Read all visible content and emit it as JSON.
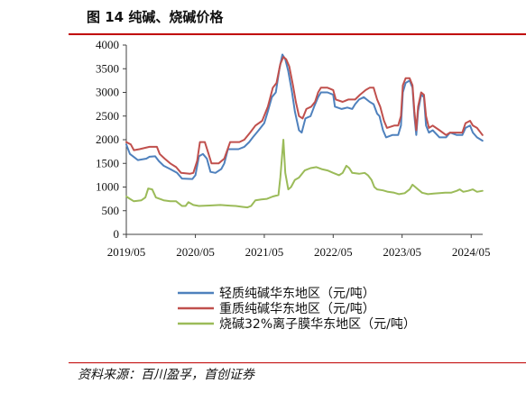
{
  "header": {
    "title": "图 14 纯碱、烧碱价格"
  },
  "footer": {
    "source": "资料来源：百川盈孚，首创证券"
  },
  "chart_data": {
    "type": "line",
    "ylim": [
      0,
      4000
    ],
    "y_ticks": [
      0,
      500,
      1000,
      1500,
      2000,
      2500,
      3000,
      3500,
      4000
    ],
    "x_range": [
      "2019/05",
      "2024/07"
    ],
    "x_ticks": [
      "2019/05",
      "2020/05",
      "2021/05",
      "2022/05",
      "2023/05",
      "2024/05"
    ],
    "legend_position": "bottom",
    "grid": false,
    "series": [
      {
        "name": "轻质纯碱华东地区（元/吨）",
        "color": "#4f81bd",
        "points": [
          [
            "2019-05-01",
            1900
          ],
          [
            "2019-05-20",
            1700
          ],
          [
            "2019-06-15",
            1620
          ],
          [
            "2019-07-01",
            1570
          ],
          [
            "2019-08-15",
            1600
          ],
          [
            "2019-09-01",
            1640
          ],
          [
            "2019-10-01",
            1650
          ],
          [
            "2019-10-20",
            1550
          ],
          [
            "2019-11-15",
            1450
          ],
          [
            "2019-12-20",
            1380
          ],
          [
            "2020-01-25",
            1300
          ],
          [
            "2020-02-20",
            1180
          ],
          [
            "2020-04-15",
            1170
          ],
          [
            "2020-05-01",
            1250
          ],
          [
            "2020-05-20",
            1650
          ],
          [
            "2020-06-10",
            1700
          ],
          [
            "2020-07-01",
            1600
          ],
          [
            "2020-07-20",
            1320
          ],
          [
            "2020-08-15",
            1300
          ],
          [
            "2020-09-15",
            1380
          ],
          [
            "2020-10-01",
            1500
          ],
          [
            "2020-10-20",
            1800
          ],
          [
            "2020-12-15",
            1800
          ],
          [
            "2021-01-15",
            1850
          ],
          [
            "2021-02-10",
            1950
          ],
          [
            "2021-03-01",
            2050
          ],
          [
            "2021-04-01",
            2200
          ],
          [
            "2021-05-01",
            2350
          ],
          [
            "2021-05-20",
            2600
          ],
          [
            "2021-06-10",
            2900
          ],
          [
            "2021-07-01",
            3000
          ],
          [
            "2021-07-20",
            3500
          ],
          [
            "2021-08-05",
            3800
          ],
          [
            "2021-08-20",
            3700
          ],
          [
            "2021-09-05",
            3450
          ],
          [
            "2021-09-25",
            3000
          ],
          [
            "2021-10-10",
            2600
          ],
          [
            "2021-11-01",
            2200
          ],
          [
            "2021-11-15",
            2150
          ],
          [
            "2021-12-05",
            2450
          ],
          [
            "2022-01-01",
            2500
          ],
          [
            "2022-01-20",
            2700
          ],
          [
            "2022-02-10",
            2900
          ],
          [
            "2022-02-25",
            3000
          ],
          [
            "2022-04-01",
            3000
          ],
          [
            "2022-05-01",
            2950
          ],
          [
            "2022-05-10",
            2700
          ],
          [
            "2022-06-15",
            2650
          ],
          [
            "2022-07-15",
            2680
          ],
          [
            "2022-08-10",
            2650
          ],
          [
            "2022-08-25",
            2750
          ],
          [
            "2022-09-15",
            2850
          ],
          [
            "2022-10-10",
            2900
          ],
          [
            "2022-11-10",
            2800
          ],
          [
            "2022-12-01",
            2750
          ],
          [
            "2022-12-20",
            2550
          ],
          [
            "2023-01-01",
            2500
          ],
          [
            "2023-01-20",
            2200
          ],
          [
            "2023-02-05",
            2050
          ],
          [
            "2023-03-10",
            2100
          ],
          [
            "2023-04-10",
            2100
          ],
          [
            "2023-04-25",
            2300
          ],
          [
            "2023-05-05",
            3000
          ],
          [
            "2023-05-20",
            3200
          ],
          [
            "2023-06-10",
            3250
          ],
          [
            "2023-06-25",
            3100
          ],
          [
            "2023-07-05",
            2500
          ],
          [
            "2023-07-15",
            2100
          ],
          [
            "2023-07-25",
            2600
          ],
          [
            "2023-08-10",
            2950
          ],
          [
            "2023-08-25",
            2900
          ],
          [
            "2023-09-05",
            2300
          ],
          [
            "2023-09-20",
            2150
          ],
          [
            "2023-10-10",
            2200
          ],
          [
            "2023-11-15",
            2050
          ],
          [
            "2023-12-20",
            2050
          ],
          [
            "2024-01-10",
            2150
          ],
          [
            "2024-02-15",
            2100
          ],
          [
            "2024-03-15",
            2100
          ],
          [
            "2024-04-01",
            2250
          ],
          [
            "2024-04-25",
            2300
          ],
          [
            "2024-05-10",
            2150
          ],
          [
            "2024-06-01",
            2050
          ],
          [
            "2024-06-30",
            1980
          ]
        ]
      },
      {
        "name": "重质纯碱华东地区（元/吨）",
        "color": "#c0504d",
        "points": [
          [
            "2019-05-01",
            1950
          ],
          [
            "2019-05-25",
            1900
          ],
          [
            "2019-06-10",
            1780
          ],
          [
            "2019-07-10",
            1800
          ],
          [
            "2019-09-01",
            1850
          ],
          [
            "2019-10-10",
            1850
          ],
          [
            "2019-10-25",
            1700
          ],
          [
            "2019-11-20",
            1600
          ],
          [
            "2019-12-20",
            1500
          ],
          [
            "2020-01-20",
            1420
          ],
          [
            "2020-02-15",
            1300
          ],
          [
            "2020-04-01",
            1280
          ],
          [
            "2020-04-20",
            1300
          ],
          [
            "2020-05-10",
            1550
          ],
          [
            "2020-05-25",
            1950
          ],
          [
            "2020-06-20",
            1950
          ],
          [
            "2020-07-10",
            1700
          ],
          [
            "2020-07-25",
            1500
          ],
          [
            "2020-09-01",
            1500
          ],
          [
            "2020-10-01",
            1600
          ],
          [
            "2020-11-01",
            1950
          ],
          [
            "2020-12-20",
            1950
          ],
          [
            "2021-01-15",
            2000
          ],
          [
            "2021-02-15",
            2150
          ],
          [
            "2021-03-15",
            2300
          ],
          [
            "2021-04-20",
            2400
          ],
          [
            "2021-05-20",
            2700
          ],
          [
            "2021-06-15",
            3100
          ],
          [
            "2021-07-05",
            3200
          ],
          [
            "2021-07-25",
            3600
          ],
          [
            "2021-08-10",
            3750
          ],
          [
            "2021-08-25",
            3700
          ],
          [
            "2021-09-10",
            3550
          ],
          [
            "2021-09-30",
            3150
          ],
          [
            "2021-10-15",
            2800
          ],
          [
            "2021-11-01",
            2500
          ],
          [
            "2021-11-20",
            2450
          ],
          [
            "2021-12-10",
            2650
          ],
          [
            "2022-01-05",
            2700
          ],
          [
            "2022-01-25",
            2800
          ],
          [
            "2022-02-10",
            3000
          ],
          [
            "2022-02-25",
            3100
          ],
          [
            "2022-04-01",
            3100
          ],
          [
            "2022-05-01",
            3050
          ],
          [
            "2022-05-15",
            2850
          ],
          [
            "2022-06-20",
            2800
          ],
          [
            "2022-07-20",
            2850
          ],
          [
            "2022-08-25",
            2850
          ],
          [
            "2022-09-20",
            2950
          ],
          [
            "2022-10-20",
            3050
          ],
          [
            "2022-11-10",
            3100
          ],
          [
            "2022-12-01",
            3100
          ],
          [
            "2022-12-20",
            2850
          ],
          [
            "2023-01-05",
            2700
          ],
          [
            "2023-01-25",
            2400
          ],
          [
            "2023-02-10",
            2250
          ],
          [
            "2023-03-20",
            2300
          ],
          [
            "2023-04-10",
            2300
          ],
          [
            "2023-04-25",
            2500
          ],
          [
            "2023-05-05",
            3150
          ],
          [
            "2023-05-20",
            3300
          ],
          [
            "2023-06-10",
            3300
          ],
          [
            "2023-06-25",
            3150
          ],
          [
            "2023-07-05",
            2600
          ],
          [
            "2023-07-15",
            2200
          ],
          [
            "2023-07-25",
            2700
          ],
          [
            "2023-08-10",
            3000
          ],
          [
            "2023-08-25",
            2950
          ],
          [
            "2023-09-05",
            2500
          ],
          [
            "2023-09-20",
            2250
          ],
          [
            "2023-10-10",
            2300
          ],
          [
            "2023-11-15",
            2200
          ],
          [
            "2023-12-20",
            2100
          ],
          [
            "2024-01-10",
            2150
          ],
          [
            "2024-02-15",
            2150
          ],
          [
            "2024-03-15",
            2150
          ],
          [
            "2024-04-01",
            2350
          ],
          [
            "2024-04-25",
            2400
          ],
          [
            "2024-05-10",
            2300
          ],
          [
            "2024-06-01",
            2250
          ],
          [
            "2024-06-30",
            2100
          ]
        ]
      },
      {
        "name": "烧碱32%离子膜华东地区（元/吨）",
        "color": "#9bbb59",
        "points": [
          [
            "2019-05-01",
            800
          ],
          [
            "2019-05-20",
            750
          ],
          [
            "2019-06-10",
            700
          ],
          [
            "2019-07-20",
            720
          ],
          [
            "2019-08-10",
            780
          ],
          [
            "2019-08-25",
            970
          ],
          [
            "2019-09-15",
            950
          ],
          [
            "2019-10-05",
            780
          ],
          [
            "2019-11-15",
            720
          ],
          [
            "2019-12-20",
            700
          ],
          [
            "2020-01-20",
            700
          ],
          [
            "2020-02-20",
            600
          ],
          [
            "2020-03-10",
            600
          ],
          [
            "2020-03-25",
            680
          ],
          [
            "2020-04-20",
            620
          ],
          [
            "2020-05-20",
            600
          ],
          [
            "2020-07-15",
            610
          ],
          [
            "2020-09-10",
            620
          ],
          [
            "2020-10-20",
            610
          ],
          [
            "2020-12-01",
            600
          ],
          [
            "2021-01-10",
            580
          ],
          [
            "2021-02-01",
            570
          ],
          [
            "2021-02-20",
            600
          ],
          [
            "2021-03-15",
            720
          ],
          [
            "2021-04-15",
            740
          ],
          [
            "2021-05-15",
            750
          ],
          [
            "2021-06-15",
            800
          ],
          [
            "2021-07-15",
            830
          ],
          [
            "2021-07-25",
            1200
          ],
          [
            "2021-08-10",
            2000
          ],
          [
            "2021-08-20",
            1300
          ],
          [
            "2021-09-05",
            950
          ],
          [
            "2021-09-20",
            1000
          ],
          [
            "2021-10-10",
            1150
          ],
          [
            "2021-11-01",
            1200
          ],
          [
            "2021-12-01",
            1350
          ],
          [
            "2022-01-01",
            1400
          ],
          [
            "2022-02-01",
            1420
          ],
          [
            "2022-03-01",
            1380
          ],
          [
            "2022-04-01",
            1350
          ],
          [
            "2022-05-01",
            1300
          ],
          [
            "2022-06-01",
            1250
          ],
          [
            "2022-06-20",
            1300
          ],
          [
            "2022-07-10",
            1450
          ],
          [
            "2022-07-25",
            1400
          ],
          [
            "2022-08-10",
            1300
          ],
          [
            "2022-09-15",
            1280
          ],
          [
            "2022-10-15",
            1300
          ],
          [
            "2022-11-01",
            1250
          ],
          [
            "2022-11-20",
            1150
          ],
          [
            "2022-12-05",
            1000
          ],
          [
            "2022-12-20",
            950
          ],
          [
            "2023-01-20",
            930
          ],
          [
            "2023-02-15",
            900
          ],
          [
            "2023-03-20",
            880
          ],
          [
            "2023-04-15",
            850
          ],
          [
            "2023-05-15",
            870
          ],
          [
            "2023-06-10",
            950
          ],
          [
            "2023-06-25",
            1050
          ],
          [
            "2023-07-10",
            1000
          ],
          [
            "2023-07-25",
            950
          ],
          [
            "2023-08-15",
            880
          ],
          [
            "2023-09-15",
            850
          ],
          [
            "2023-10-15",
            860
          ],
          [
            "2023-11-15",
            870
          ],
          [
            "2023-12-15",
            880
          ],
          [
            "2024-01-15",
            880
          ],
          [
            "2024-02-15",
            920
          ],
          [
            "2024-03-01",
            950
          ],
          [
            "2024-03-20",
            900
          ],
          [
            "2024-04-15",
            920
          ],
          [
            "2024-05-10",
            950
          ],
          [
            "2024-06-01",
            900
          ],
          [
            "2024-06-30",
            920
          ]
        ]
      }
    ]
  }
}
